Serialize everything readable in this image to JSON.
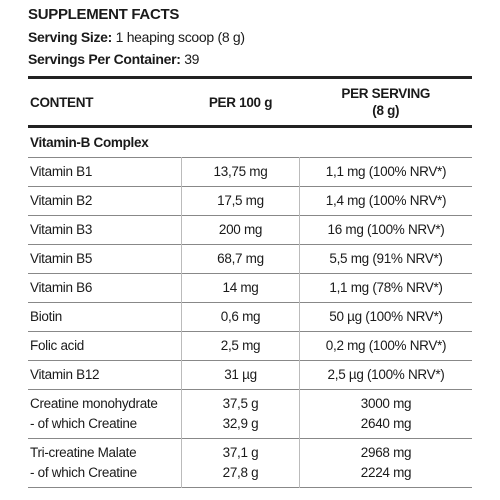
{
  "header": {
    "title": "SUPPLEMENT FACTS",
    "serving_size_label": "Serving Size:",
    "serving_size_value": "1 heaping scoop (8 g)",
    "servings_label": "Servings Per Container:",
    "servings_value": "39"
  },
  "table": {
    "columns": [
      [
        "CONTENT"
      ],
      [
        "PER 100 g"
      ],
      [
        "PER SERVING",
        "(8 g)"
      ]
    ],
    "section": "Vitamin-B Complex",
    "rows": [
      [
        [
          "Vitamin B1"
        ],
        [
          "13,75 mg"
        ],
        [
          "1,1 mg (100% NRV*)"
        ]
      ],
      [
        [
          "Vitamin B2"
        ],
        [
          "17,5 mg"
        ],
        [
          "1,4 mg (100% NRV*)"
        ]
      ],
      [
        [
          "Vitamin B3"
        ],
        [
          "200 mg"
        ],
        [
          "16 mg (100% NRV*)"
        ]
      ],
      [
        [
          "Vitamin B5"
        ],
        [
          "68,7 mg"
        ],
        [
          "5,5 mg (91% NRV*)"
        ]
      ],
      [
        [
          "Vitamin B6"
        ],
        [
          "14 mg"
        ],
        [
          "1,1 mg (78% NRV*)"
        ]
      ],
      [
        [
          "Biotin"
        ],
        [
          "0,6 mg"
        ],
        [
          "50 µg (100% NRV*)"
        ]
      ],
      [
        [
          "Folic acid"
        ],
        [
          "2,5 mg"
        ],
        [
          "0,2 mg (100% NRV*)"
        ]
      ],
      [
        [
          "Vitamin B12"
        ],
        [
          "31 µg"
        ],
        [
          "2,5 µg (100% NRV*)"
        ]
      ],
      [
        [
          "Creatine monohydrate",
          "- of which Creatine"
        ],
        [
          "37,5 g",
          "32,9 g"
        ],
        [
          "3000 mg",
          "2640 mg"
        ]
      ],
      [
        [
          "Tri-creatine Malate",
          "- of which Creatine"
        ],
        [
          "37,1 g",
          "27,8 g"
        ],
        [
          "2968 mg",
          "2224 mg"
        ]
      ]
    ]
  }
}
